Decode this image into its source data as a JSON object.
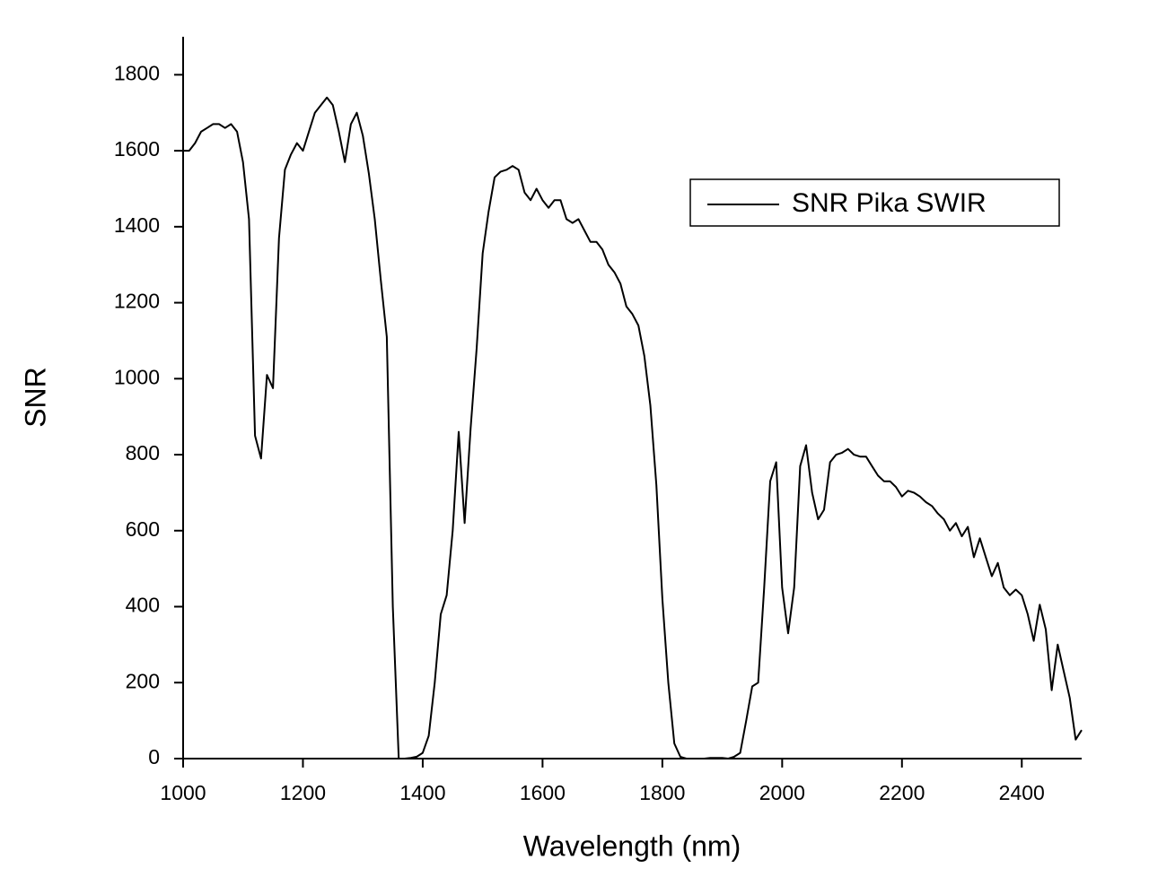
{
  "chart_data": {
    "type": "line",
    "x_label": "Wavelength (nm)",
    "y_label": "SNR",
    "xlim": [
      1000,
      2500
    ],
    "ylim": [
      0,
      1900
    ],
    "xticks": [
      1000,
      1200,
      1400,
      1600,
      1800,
      2000,
      2200,
      2400
    ],
    "yticks": [
      0,
      200,
      400,
      600,
      800,
      1000,
      1200,
      1400,
      1600,
      1800
    ],
    "legend": "upper right",
    "grid": false,
    "x": [
      1000,
      1010,
      1020,
      1030,
      1040,
      1050,
      1060,
      1070,
      1080,
      1090,
      1100,
      1110,
      1120,
      1130,
      1140,
      1150,
      1160,
      1170,
      1180,
      1190,
      1200,
      1210,
      1220,
      1230,
      1240,
      1250,
      1260,
      1270,
      1280,
      1290,
      1300,
      1310,
      1320,
      1330,
      1340,
      1350,
      1360,
      1370,
      1380,
      1390,
      1400,
      1410,
      1420,
      1430,
      1440,
      1450,
      1460,
      1470,
      1480,
      1490,
      1500,
      1510,
      1520,
      1530,
      1540,
      1550,
      1560,
      1570,
      1580,
      1590,
      1600,
      1610,
      1620,
      1630,
      1640,
      1650,
      1660,
      1670,
      1680,
      1690,
      1700,
      1710,
      1720,
      1730,
      1740,
      1750,
      1760,
      1770,
      1780,
      1790,
      1800,
      1810,
      1820,
      1830,
      1840,
      1850,
      1860,
      1870,
      1880,
      1890,
      1900,
      1910,
      1920,
      1930,
      1940,
      1950,
      1960,
      1970,
      1980,
      1990,
      2000,
      2010,
      2020,
      2030,
      2040,
      2050,
      2060,
      2070,
      2080,
      2090,
      2100,
      2110,
      2120,
      2130,
      2140,
      2150,
      2160,
      2170,
      2180,
      2190,
      2200,
      2210,
      2220,
      2230,
      2240,
      2250,
      2260,
      2270,
      2280,
      2290,
      2300,
      2310,
      2320,
      2330,
      2340,
      2350,
      2360,
      2370,
      2380,
      2390,
      2400,
      2410,
      2420,
      2430,
      2440,
      2450,
      2460,
      2470,
      2480,
      2490,
      2500
    ],
    "series": [
      {
        "name": "SNR Pika SWIR",
        "color": "#000000",
        "values": [
          1600,
          1600,
          1620,
          1650,
          1660,
          1670,
          1670,
          1660,
          1670,
          1650,
          1570,
          1420,
          850,
          790,
          1010,
          975,
          1370,
          1550,
          1590,
          1620,
          1600,
          1650,
          1700,
          1720,
          1740,
          1720,
          1650,
          1570,
          1670,
          1700,
          1640,
          1540,
          1420,
          1260,
          1110,
          400,
          0,
          0,
          2,
          5,
          15,
          60,
          200,
          380,
          430,
          600,
          860,
          620,
          870,
          1080,
          1330,
          1440,
          1530,
          1545,
          1550,
          1560,
          1550,
          1490,
          1470,
          1500,
          1470,
          1450,
          1470,
          1470,
          1420,
          1410,
          1420,
          1390,
          1360,
          1360,
          1340,
          1300,
          1280,
          1250,
          1190,
          1170,
          1140,
          1060,
          930,
          720,
          420,
          200,
          40,
          5,
          0,
          0,
          0,
          0,
          2,
          2,
          2,
          0,
          5,
          15,
          100,
          190,
          200,
          450,
          730,
          780,
          450,
          330,
          450,
          770,
          825,
          700,
          630,
          655,
          780,
          800,
          805,
          815,
          800,
          795,
          795,
          770,
          745,
          730,
          730,
          715,
          690,
          705,
          700,
          690,
          675,
          665,
          645,
          630,
          600,
          620,
          585,
          610,
          530,
          580,
          530,
          480,
          515,
          450,
          430,
          445,
          430,
          380,
          310,
          405,
          340,
          180,
          300,
          230,
          160,
          50,
          75
        ]
      }
    ]
  }
}
